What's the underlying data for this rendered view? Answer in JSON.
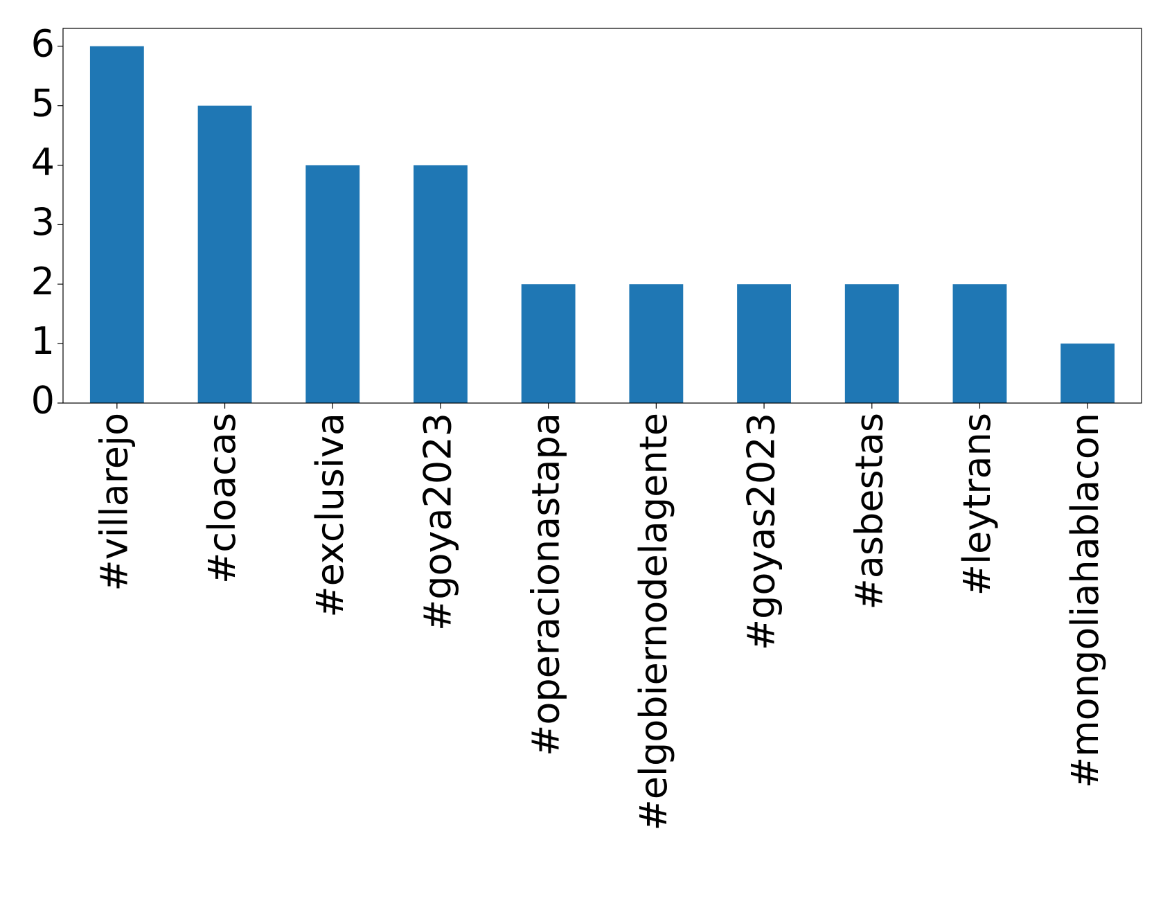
{
  "chart_data": {
    "type": "bar",
    "categories": [
      "#villarejo",
      "#cloacas",
      "#exclusiva",
      "#goya2023",
      "#operacionastapa",
      "#elgobiernodelagente",
      "#goyas2023",
      "#asbestas",
      "#leytrans",
      "#mongoliahablacon"
    ],
    "values": [
      6,
      5,
      4,
      4,
      2,
      2,
      2,
      2,
      2,
      1
    ],
    "color": "#1f77b4",
    "ylim": [
      0,
      6.3
    ],
    "yticks": [
      0,
      1,
      2,
      3,
      4,
      5,
      6
    ],
    "grid": false
  }
}
